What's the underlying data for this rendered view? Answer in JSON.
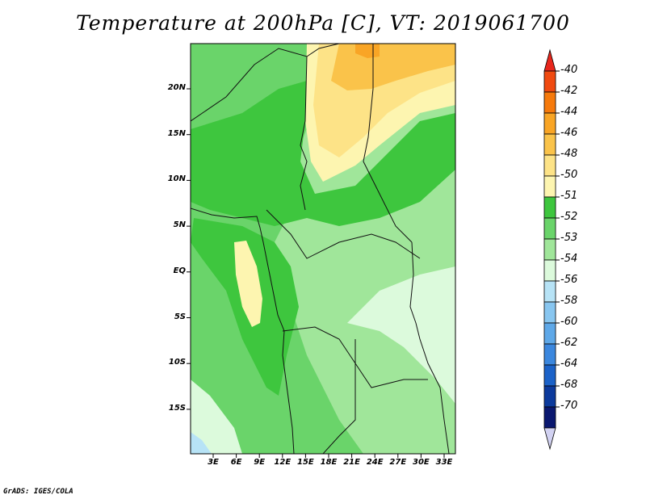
{
  "title": "Temperature at 200hPa [C], VT: 2019061700",
  "credit": "GrADS: IGES/COLA",
  "map": {
    "lat_labels": [
      "20N",
      "15N",
      "10N",
      "5N",
      "EQ",
      "5S",
      "10S",
      "15S"
    ],
    "lon_labels": [
      "3E",
      "6E",
      "9E",
      "12E",
      "15E",
      "18E",
      "21E",
      "24E",
      "27E",
      "30E",
      "33E"
    ]
  },
  "colorbar": {
    "labels": [
      "-40",
      "-42",
      "-44",
      "-46",
      "-48",
      "-50",
      "-51",
      "-52",
      "-53",
      "-54",
      "-56",
      "-58",
      "-60",
      "-62",
      "-64",
      "-68",
      "-70"
    ],
    "colors": [
      "#e8261c",
      "#f04a10",
      "#f67a0c",
      "#f9a525",
      "#fac34a",
      "#fde387",
      "#fdf5b0",
      "#3ec63e",
      "#6ad46a",
      "#a0e69a",
      "#dcfadc",
      "#b7e3f6",
      "#88c6f0",
      "#5ea8e8",
      "#3b87de",
      "#1b62c8",
      "#0c3a9c",
      "#0a1870",
      "#d2d2f2"
    ]
  }
}
